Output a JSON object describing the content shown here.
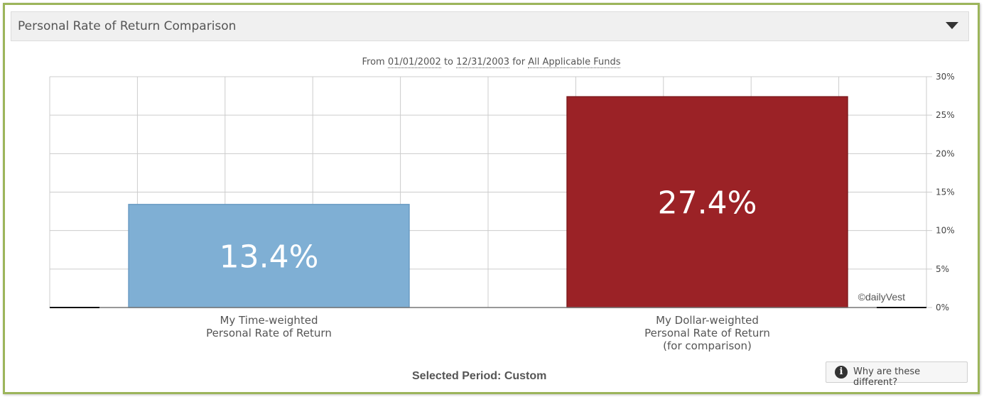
{
  "panel": {
    "title": "Personal Rate of Return Comparison",
    "toggle_icon": "triangle-down-icon"
  },
  "subtitle": {
    "from_label": "From",
    "start_date": "01/01/2002",
    "to_label": "to",
    "end_date": "12/31/2003",
    "for_label": "for",
    "funds": "All Applicable Funds"
  },
  "chart_data": {
    "type": "bar",
    "categories": [
      [
        "My Time-weighted",
        "Personal Rate of Return"
      ],
      [
        "My Dollar-weighted",
        "Personal Rate of Return",
        "(for comparison)"
      ]
    ],
    "values": [
      13.4,
      27.4
    ],
    "data_labels": [
      "13.4%",
      "27.4%"
    ],
    "colors": [
      "#7fafd4",
      "#9b2226"
    ],
    "ylim": [
      0,
      30
    ],
    "yticks": [
      0,
      5,
      10,
      15,
      20,
      25,
      30
    ],
    "ytick_labels": [
      "0%",
      "5%",
      "10%",
      "15%",
      "20%",
      "25%",
      "30%"
    ],
    "yaxis_position": "right",
    "grid": true,
    "watermark": "©dailyVest"
  },
  "footer": {
    "period_text": "Selected Period: Custom",
    "why_button_label": "Why are these different?",
    "why_button_icon": "info-icon"
  }
}
